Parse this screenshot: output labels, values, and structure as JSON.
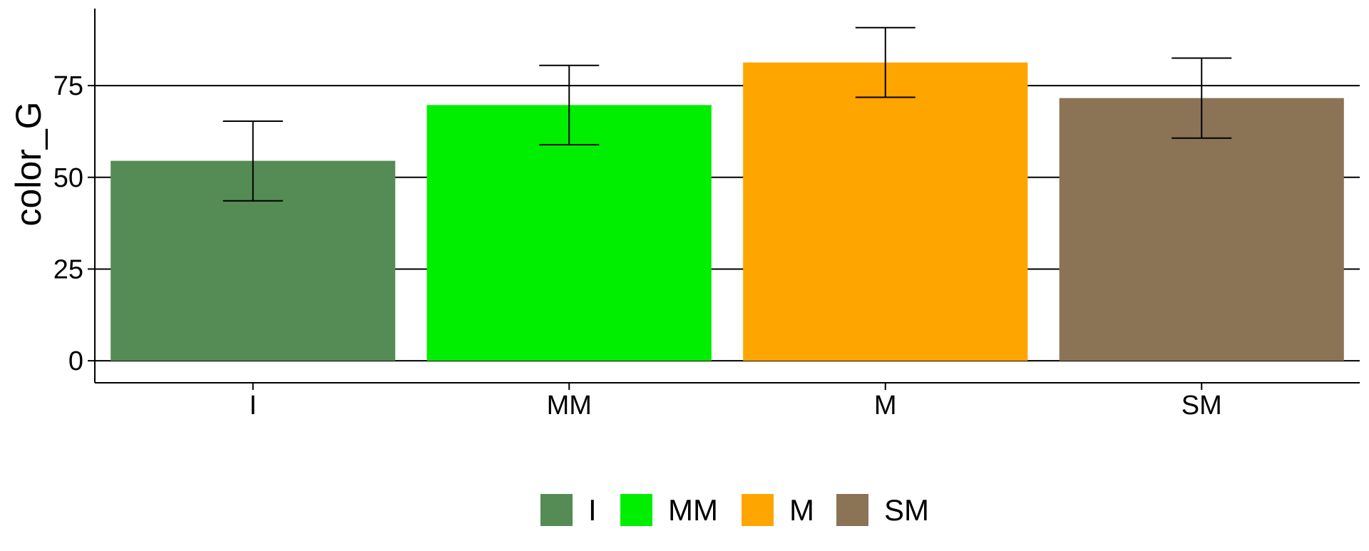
{
  "chart_data": {
    "type": "bar",
    "title": "",
    "xlabel": "",
    "ylabel": "color_G",
    "categories": [
      "I",
      "MM",
      "M",
      "SM"
    ],
    "values": [
      54.5,
      69.7,
      81.3,
      71.6
    ],
    "error_low": [
      43.6,
      58.9,
      71.8,
      60.7
    ],
    "error_high": [
      65.3,
      80.5,
      90.8,
      82.5
    ],
    "colors": [
      "#558B55",
      "#00EE00",
      "#FFA500",
      "#8B7355"
    ],
    "ylim": [
      -6,
      96
    ],
    "yticks": [
      0,
      25,
      50,
      75
    ],
    "ytick_labels": [
      "0",
      "25",
      "50",
      "75"
    ],
    "grid": "horizontal major lines",
    "legend": {
      "position": "bottom",
      "entries": [
        "I",
        "MM",
        "M",
        "SM"
      ]
    }
  }
}
